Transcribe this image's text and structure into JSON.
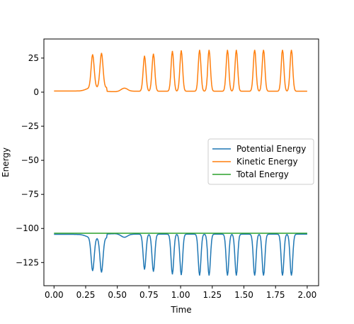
{
  "chart_data": {
    "type": "line",
    "title": "",
    "xlabel": "Time",
    "ylabel": "Energy",
    "xlim": [
      -0.08,
      2.09
    ],
    "ylim": [
      -142,
      39
    ],
    "xticks": [
      0.0,
      0.25,
      0.5,
      0.75,
      1.0,
      1.25,
      1.5,
      1.75,
      2.0
    ],
    "xtick_labels": [
      "0.00",
      "0.25",
      "0.50",
      "0.75",
      "1.00",
      "1.25",
      "1.50",
      "1.75",
      "2.00"
    ],
    "yticks": [
      -125,
      -100,
      -75,
      -50,
      -25,
      0,
      25
    ],
    "ytick_labels": [
      "−125",
      "−100",
      "−75",
      "−50",
      "−25",
      "0",
      "25"
    ],
    "grid": false,
    "legend_position": "center-right",
    "total_energy": -103.5,
    "series": [
      {
        "name": "Potential Energy",
        "color": "#1f77b4",
        "x": [],
        "y": []
      },
      {
        "name": "Kinetic Energy",
        "color": "#ff7f0e",
        "x": [],
        "y": []
      },
      {
        "name": "Total Energy",
        "color": "#2ca02c",
        "x": [
          0.0,
          2.0
        ],
        "y": [
          -103.5,
          -103.5
        ]
      }
    ]
  }
}
